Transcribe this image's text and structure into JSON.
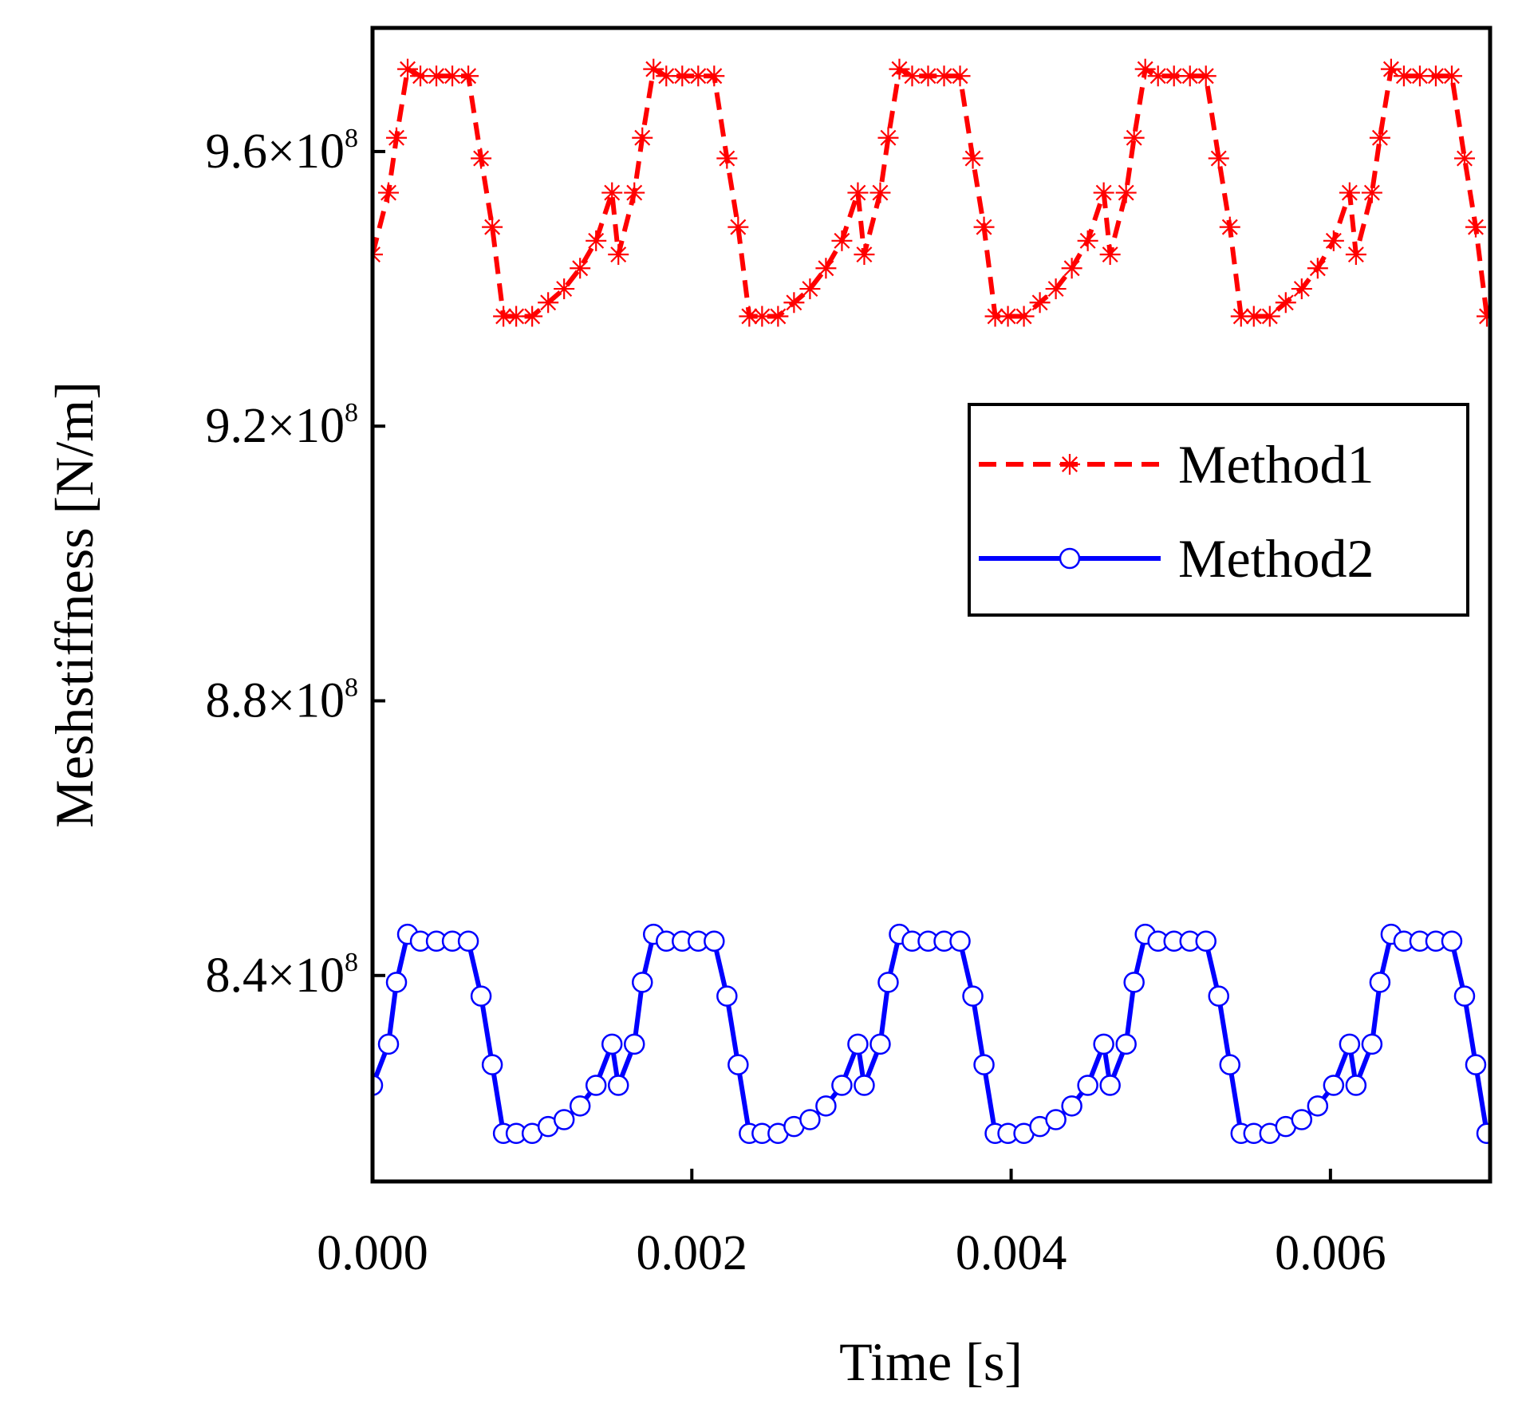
{
  "chart_data": {
    "type": "line",
    "title": "",
    "xlabel": "Time [s]",
    "ylabel": "Meshstiffness [N/m]",
    "xlim": [
      0,
      0.007
    ],
    "ylim": [
      810000000.0,
      978000000.0
    ],
    "x_ticks": [
      {
        "value": 0.0,
        "label": "0.000"
      },
      {
        "value": 0.002,
        "label": "0.002"
      },
      {
        "value": 0.004,
        "label": "0.004"
      },
      {
        "value": 0.006,
        "label": "0.006"
      }
    ],
    "y_ticks": [
      {
        "value": 840000000.0,
        "mantissa": "8.4",
        "base": "×10",
        "exp": "8"
      },
      {
        "value": 880000000.0,
        "mantissa": "8.8",
        "base": "×10",
        "exp": "8"
      },
      {
        "value": 920000000.0,
        "mantissa": "9.2",
        "base": "×10",
        "exp": "8"
      },
      {
        "value": 960000000.0,
        "mantissa": "9.6",
        "base": "×10",
        "exp": "8"
      }
    ],
    "legend_position": "upper-right",
    "period": 0.00154,
    "series": [
      {
        "name": "Method1",
        "color": "#ff0000",
        "line_style": "dashed",
        "marker": "asterisk",
        "x": [
          0,
          0.0001,
          0.00015,
          0.00022,
          0.0003,
          0.0004,
          0.0005,
          0.0006,
          0.00068,
          0.00075,
          0.00082,
          0.0009,
          0.001,
          0.0011,
          0.0012,
          0.0013,
          0.0014,
          0.0015
        ],
        "y": [
          945000000.0,
          954000000.0,
          962000000.0,
          972000000.0,
          971000000.0,
          971000000.0,
          971000000.0,
          971000000.0,
          959000000.0,
          949000000.0,
          936000000.0,
          936000000.0,
          936000000.0,
          938000000.0,
          940000000.0,
          943000000.0,
          947000000.0,
          954000000.0
        ]
      },
      {
        "name": "Method2",
        "color": "#0000ff",
        "line_style": "solid",
        "marker": "circle",
        "x": [
          0,
          0.0001,
          0.00015,
          0.00022,
          0.0003,
          0.0004,
          0.0005,
          0.0006,
          0.00068,
          0.00075,
          0.00082,
          0.0009,
          0.001,
          0.0011,
          0.0012,
          0.0013,
          0.0014,
          0.0015
        ],
        "y": [
          824000000.0,
          830000000.0,
          839000000.0,
          846000000.0,
          845000000.0,
          845000000.0,
          845000000.0,
          845000000.0,
          837000000.0,
          827000000.0,
          817000000.0,
          817000000.0,
          817000000.0,
          818000000.0,
          819000000.0,
          821000000.0,
          824000000.0,
          830000000.0
        ]
      }
    ]
  }
}
